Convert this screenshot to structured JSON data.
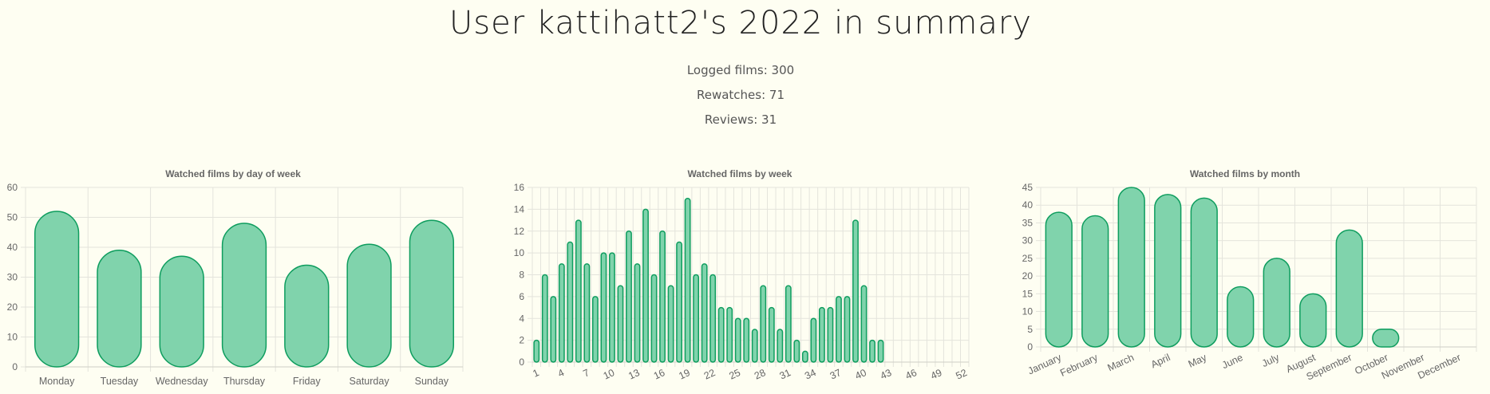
{
  "header": {
    "title": "User kattihatt2's 2022 in summary",
    "logged": "Logged films: 300",
    "rewatches": "Rewatches: 71",
    "reviews": "Reviews: 31"
  },
  "colors": {
    "bar_fill": "#80d3ac",
    "bar_stroke": "#0e9d5e"
  },
  "chart_data": [
    {
      "type": "bar",
      "title": "Watched films by day of week",
      "categories": [
        "Monday",
        "Tuesday",
        "Wednesday",
        "Thursday",
        "Friday",
        "Saturday",
        "Sunday"
      ],
      "values": [
        52,
        39,
        37,
        48,
        34,
        41,
        49
      ],
      "ylim": [
        0,
        60
      ],
      "yticks": [
        0,
        10,
        20,
        30,
        40,
        50,
        60
      ],
      "grid": true
    },
    {
      "type": "bar",
      "title": "Watched films by week",
      "categories": [
        "1",
        "2",
        "3",
        "4",
        "5",
        "6",
        "7",
        "8",
        "9",
        "10",
        "11",
        "12",
        "13",
        "14",
        "15",
        "16",
        "17",
        "18",
        "19",
        "20",
        "21",
        "22",
        "23",
        "24",
        "25",
        "26",
        "27",
        "28",
        "29",
        "30",
        "31",
        "32",
        "33",
        "34",
        "35",
        "36",
        "37",
        "38",
        "39",
        "40",
        "41",
        "42",
        "43",
        "44",
        "45",
        "46",
        "47",
        "48",
        "49",
        "50",
        "51",
        "52"
      ],
      "shown_tick_labels": [
        "1",
        "4",
        "7",
        "10",
        "13",
        "16",
        "19",
        "22",
        "25",
        "28",
        "31",
        "34",
        "37",
        "40",
        "43",
        "46",
        "49",
        "52"
      ],
      "values": [
        2,
        8,
        6,
        9,
        11,
        13,
        9,
        6,
        10,
        10,
        7,
        12,
        9,
        14,
        8,
        12,
        7,
        11,
        15,
        8,
        9,
        8,
        5,
        5,
        4,
        4,
        3,
        7,
        5,
        3,
        7,
        2,
        1,
        4,
        5,
        5,
        6,
        6,
        13,
        7,
        2,
        2,
        0,
        0,
        0,
        0,
        0,
        0,
        0,
        0,
        0,
        0
      ],
      "ylim": [
        0,
        16
      ],
      "yticks": [
        0,
        2,
        4,
        6,
        8,
        10,
        12,
        14,
        16
      ],
      "grid": true
    },
    {
      "type": "bar",
      "title": "Watched films by month",
      "categories": [
        "January",
        "February",
        "March",
        "April",
        "May",
        "June",
        "July",
        "August",
        "September",
        "October",
        "November",
        "December"
      ],
      "values": [
        38,
        37,
        45,
        43,
        42,
        17,
        25,
        15,
        33,
        5,
        0,
        0
      ],
      "ylim": [
        0,
        45
      ],
      "yticks": [
        0,
        5,
        10,
        15,
        20,
        25,
        30,
        35,
        40,
        45
      ],
      "grid": true
    }
  ]
}
